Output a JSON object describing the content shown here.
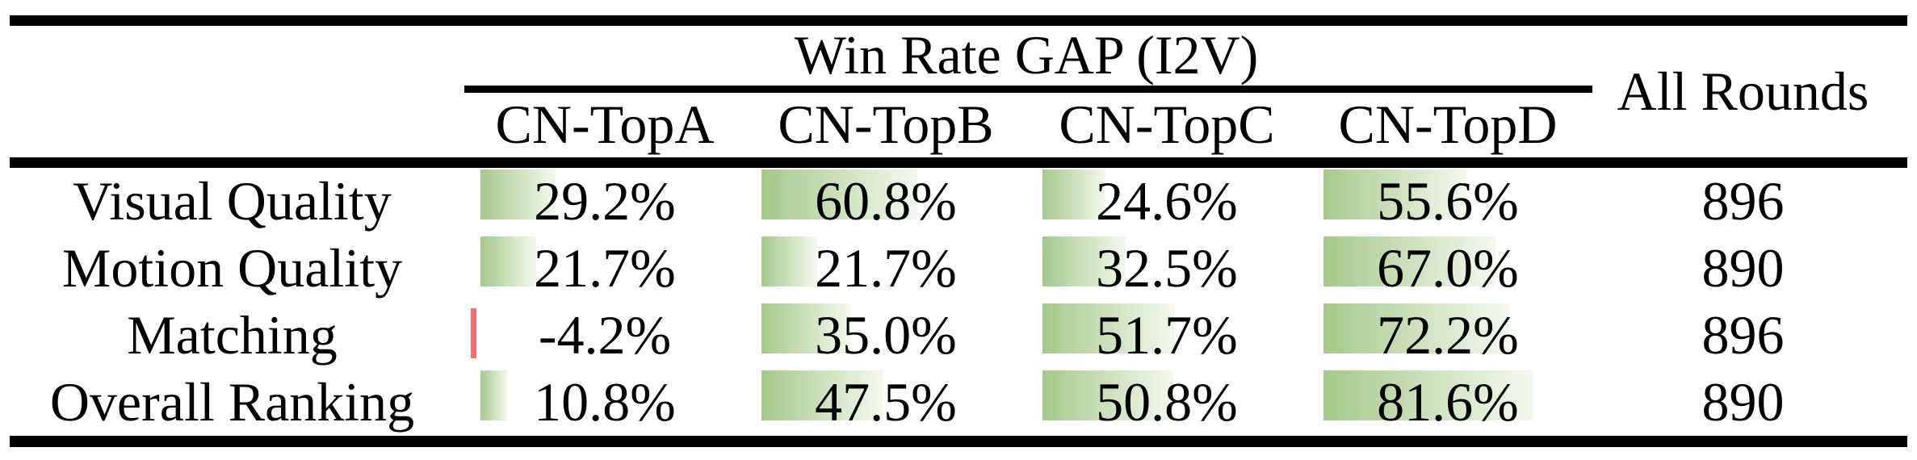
{
  "header": {
    "group": "Win Rate GAP (I2V)",
    "columns": [
      "CN-TopA",
      "CN-TopB",
      "CN-TopC",
      "CN-TopD"
    ],
    "all_rounds": "All Rounds"
  },
  "rows": [
    {
      "label": "Visual Quality",
      "values": [
        "29.2%",
        "60.8%",
        "24.6%",
        "55.6%"
      ],
      "pct": [
        29.2,
        60.8,
        24.6,
        55.6
      ],
      "all_rounds": "896"
    },
    {
      "label": "Motion Quality",
      "values": [
        "21.7%",
        "21.7%",
        "32.5%",
        "67.0%"
      ],
      "pct": [
        21.7,
        21.7,
        32.5,
        67.0
      ],
      "all_rounds": "890"
    },
    {
      "label": "Matching",
      "values": [
        "-4.2%",
        "35.0%",
        "51.7%",
        "72.2%"
      ],
      "pct": [
        -4.2,
        35.0,
        51.7,
        72.2
      ],
      "all_rounds": "896"
    },
    {
      "label": "Overall Ranking",
      "values": [
        "10.8%",
        "47.5%",
        "50.8%",
        "81.6%"
      ],
      "pct": [
        10.8,
        47.5,
        50.8,
        81.6
      ],
      "all_rounds": "890"
    }
  ],
  "colors": {
    "background": "#ffffff",
    "text": "#000000",
    "rule": "#000000",
    "bar_positive_green": "#a6c88c",
    "bar_positive_fade": "#f4f9ef",
    "bar_negative_red": "#f07070"
  },
  "chart_data": {
    "type": "table",
    "title": "Win Rate GAP (I2V)",
    "columns": [
      "CN-TopA",
      "CN-TopB",
      "CN-TopC",
      "CN-TopD",
      "All Rounds"
    ],
    "row_labels": [
      "Visual Quality",
      "Motion Quality",
      "Matching",
      "Overall Ranking"
    ],
    "series": [
      {
        "name": "CN-TopA",
        "values": [
          29.2,
          21.7,
          -4.2,
          10.8
        ]
      },
      {
        "name": "CN-TopB",
        "values": [
          60.8,
          21.7,
          35.0,
          47.5
        ]
      },
      {
        "name": "CN-TopC",
        "values": [
          24.6,
          32.5,
          51.7,
          50.8
        ]
      },
      {
        "name": "CN-TopD",
        "values": [
          55.6,
          67.0,
          72.2,
          81.6
        ]
      }
    ],
    "all_rounds": [
      896,
      890,
      896,
      890
    ],
    "unit": "percent",
    "bar_style": "in-cell data bars: green gradient for positive values, thin red sliver for negative, width proportional to value"
  }
}
